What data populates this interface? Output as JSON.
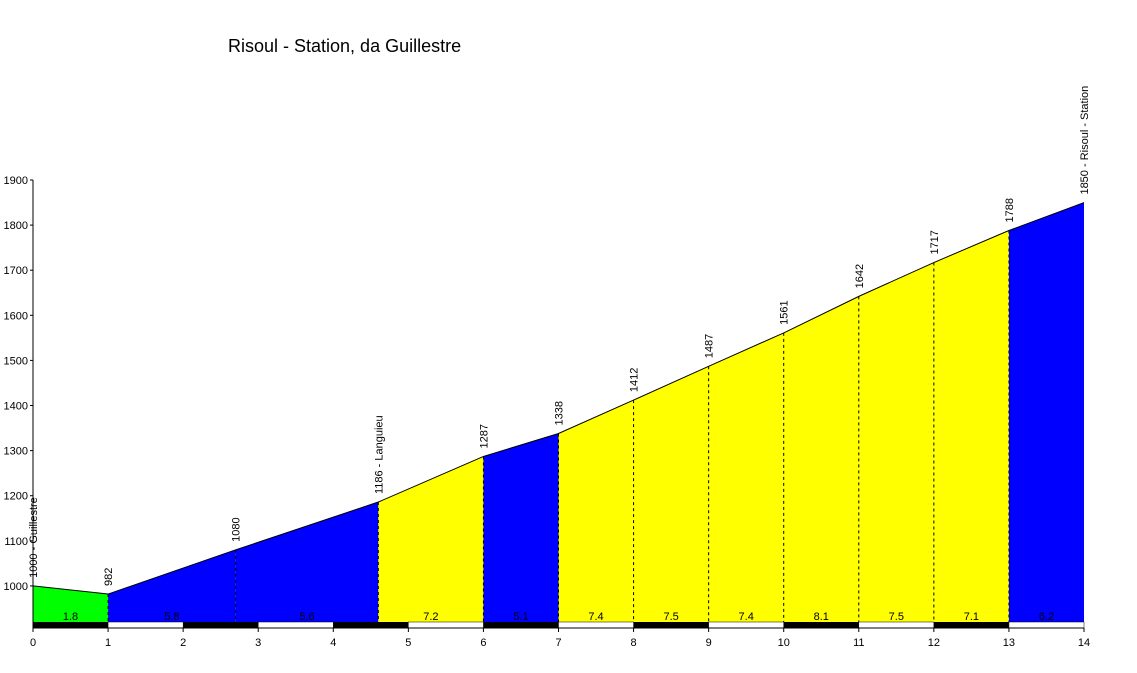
{
  "chart_data": {
    "type": "area",
    "title": "Risoul - Station, da Guillestre",
    "xlabel": "",
    "ylabel": "",
    "xlim": [
      0,
      14
    ],
    "ylim": [
      920,
      1900
    ],
    "x_ticks": [
      0,
      1,
      2,
      3,
      4,
      5,
      6,
      7,
      8,
      9,
      10,
      11,
      12,
      13,
      14
    ],
    "y_ticks": [
      1000,
      1100,
      1200,
      1300,
      1400,
      1500,
      1600,
      1700,
      1800,
      1900
    ],
    "grid": false,
    "legend": "none",
    "profile": [
      {
        "x": 0,
        "y": 1000
      },
      {
        "x": 1,
        "y": 982
      },
      {
        "x": 2.7,
        "y": 1080
      },
      {
        "x": 4.6,
        "y": 1186
      },
      {
        "x": 6,
        "y": 1287
      },
      {
        "x": 7,
        "y": 1338
      },
      {
        "x": 8,
        "y": 1412
      },
      {
        "x": 9,
        "y": 1487
      },
      {
        "x": 10,
        "y": 1561
      },
      {
        "x": 11,
        "y": 1642
      },
      {
        "x": 12,
        "y": 1717
      },
      {
        "x": 13,
        "y": 1788
      },
      {
        "x": 14,
        "y": 1850
      }
    ],
    "segments": [
      {
        "from": 0,
        "to": 1,
        "gradient": "1.8",
        "color": "#00ff00"
      },
      {
        "from": 1,
        "to": 2.7,
        "gradient": "5.8",
        "color": "#0000ff"
      },
      {
        "from": 2.7,
        "to": 4.6,
        "gradient": "5.6",
        "color": "#0000ff"
      },
      {
        "from": 4.6,
        "to": 6,
        "gradient": "7.2",
        "color": "#ffff00"
      },
      {
        "from": 6,
        "to": 7,
        "gradient": "5.1",
        "color": "#0000ff"
      },
      {
        "from": 7,
        "to": 8,
        "gradient": "7.4",
        "color": "#ffff00"
      },
      {
        "from": 8,
        "to": 9,
        "gradient": "7.5",
        "color": "#ffff00"
      },
      {
        "from": 9,
        "to": 10,
        "gradient": "7.4",
        "color": "#ffff00"
      },
      {
        "from": 10,
        "to": 11,
        "gradient": "8.1",
        "color": "#ffff00"
      },
      {
        "from": 11,
        "to": 12,
        "gradient": "7.5",
        "color": "#ffff00"
      },
      {
        "from": 12,
        "to": 13,
        "gradient": "7.1",
        "color": "#ffff00"
      },
      {
        "from": 13,
        "to": 14,
        "gradient": "6.2",
        "color": "#0000ff"
      }
    ],
    "point_labels": [
      {
        "x": 0,
        "y": 1000,
        "text": "1000 - Guillestre"
      },
      {
        "x": 1,
        "y": 982,
        "text": "982"
      },
      {
        "x": 2.7,
        "y": 1080,
        "text": "1080"
      },
      {
        "x": 4.6,
        "y": 1186,
        "text": "1186 - Languieu"
      },
      {
        "x": 6,
        "y": 1287,
        "text": "1287"
      },
      {
        "x": 7,
        "y": 1338,
        "text": "1338"
      },
      {
        "x": 8,
        "y": 1412,
        "text": "1412"
      },
      {
        "x": 9,
        "y": 1487,
        "text": "1487"
      },
      {
        "x": 10,
        "y": 1561,
        "text": "1561"
      },
      {
        "x": 11,
        "y": 1642,
        "text": "1642"
      },
      {
        "x": 12,
        "y": 1717,
        "text": "1717"
      },
      {
        "x": 13,
        "y": 1788,
        "text": "1788"
      },
      {
        "x": 14,
        "y": 1850,
        "text": "1850 - Risoul - Station"
      }
    ]
  }
}
